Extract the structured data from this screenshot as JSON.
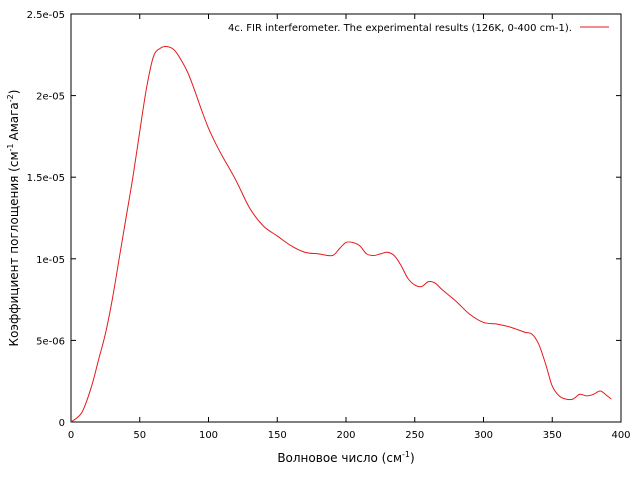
{
  "chart_data": {
    "type": "line",
    "xlabel": "Волновое число (см",
    "xlabel_sup": "-1",
    "xlabel_end": ")",
    "ylabel": "Коэффициент поглощения (см",
    "ylabel_sup1": "-1",
    "ylabel_mid": "Амага",
    "ylabel_sup2": "-2",
    "ylabel_end": ")",
    "xlim": [
      0,
      400
    ],
    "ylim": [
      0,
      2.5e-05
    ],
    "xticks": [
      0,
      50,
      100,
      150,
      200,
      250,
      300,
      350,
      400
    ],
    "xtick_labels": [
      "0",
      "50",
      "100",
      "150",
      "200",
      "250",
      "300",
      "350",
      "400"
    ],
    "yticks": [
      0,
      5e-06,
      1e-05,
      1.5e-05,
      2e-05,
      2.5e-05
    ],
    "ytick_labels": [
      "0",
      "5e-06",
      "1e-05",
      "1.5e-05",
      "2e-05",
      "2.5e-05"
    ],
    "grid": false,
    "legend_position": "top-right",
    "series": [
      {
        "name": "4c. FIR interferometer. The experimental  results (126K, 0-400 cm-1).",
        "color": "#e41a1c",
        "x": [
          0,
          8,
          15,
          20,
          25,
          30,
          35,
          40,
          45,
          50,
          55,
          60,
          65,
          70,
          75,
          80,
          85,
          90,
          95,
          100,
          105,
          110,
          120,
          130,
          140,
          150,
          160,
          170,
          180,
          190,
          195,
          200,
          205,
          210,
          215,
          220,
          225,
          230,
          235,
          240,
          245,
          250,
          255,
          260,
          265,
          270,
          280,
          290,
          300,
          310,
          320,
          330,
          335,
          340,
          345,
          350,
          355,
          360,
          365,
          370,
          375,
          380,
          385,
          390,
          393
        ],
        "y": [
          0,
          6e-07,
          2.2e-06,
          3.8e-06,
          5.4e-06,
          7.5e-06,
          1e-05,
          1.25e-05,
          1.5e-05,
          1.78e-05,
          2.05e-05,
          2.24e-05,
          2.29e-05,
          2.3e-05,
          2.28e-05,
          2.22e-05,
          2.14e-05,
          2.03e-05,
          1.91e-05,
          1.8e-05,
          1.71e-05,
          1.63e-05,
          1.48e-05,
          1.31e-05,
          1.2e-05,
          1.14e-05,
          1.08e-05,
          1.04e-05,
          1.03e-05,
          1.02e-05,
          1.06e-05,
          1.1e-05,
          1.1e-05,
          1.08e-05,
          1.03e-05,
          1.02e-05,
          1.03e-05,
          1.04e-05,
          1.02e-05,
          9.6e-06,
          8.8e-06,
          8.4e-06,
          8.3e-06,
          8.6e-06,
          8.5e-06,
          8.1e-06,
          7.4e-06,
          6.6e-06,
          6.1e-06,
          6e-06,
          5.8e-06,
          5.5e-06,
          5.4e-06,
          4.8e-06,
          3.6e-06,
          2.2e-06,
          1.6e-06,
          1.4e-06,
          1.4e-06,
          1.7e-06,
          1.6e-06,
          1.7e-06,
          1.9e-06,
          1.6e-06,
          1.4e-06
        ]
      }
    ]
  }
}
